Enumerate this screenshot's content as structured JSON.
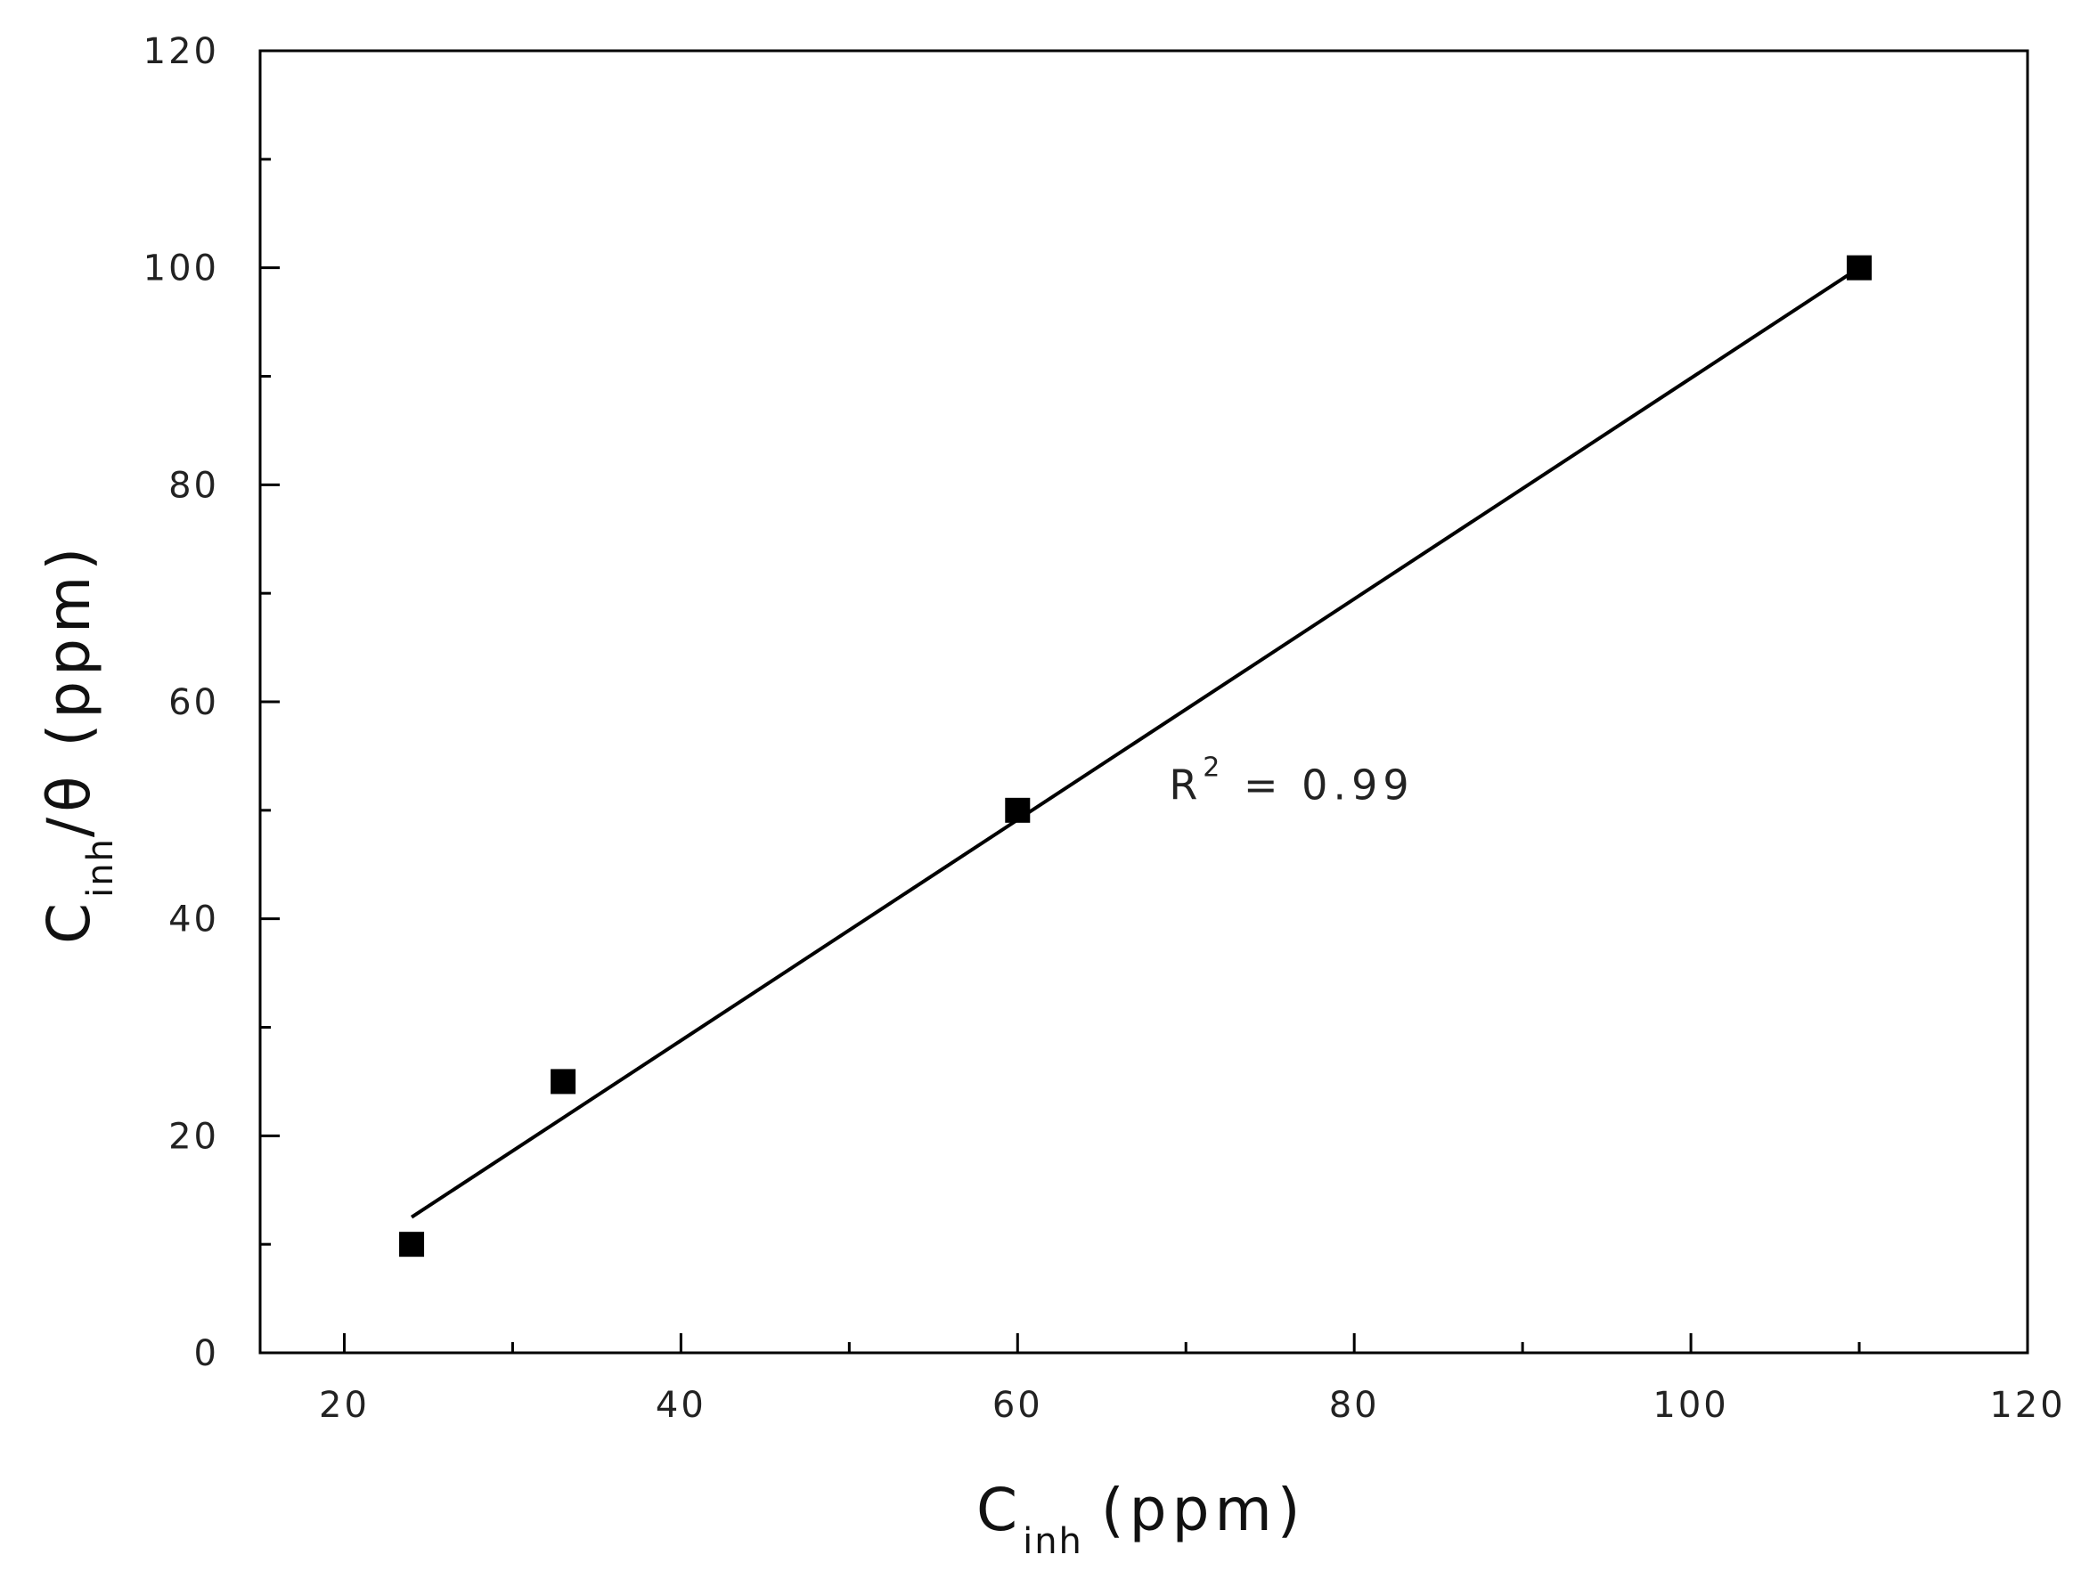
{
  "chart_data": {
    "type": "scatter",
    "title": "",
    "xlabel": {
      "main": "C",
      "sub": "inh",
      "rest": "(ppm)"
    },
    "ylabel": {
      "main": "C",
      "sub": "inh",
      "rest": "/θ (ppm)"
    },
    "xlim": [
      15,
      120
    ],
    "ylim": [
      0,
      120
    ],
    "x_ticks": [
      20,
      40,
      60,
      80,
      100,
      120
    ],
    "y_ticks": [
      0,
      20,
      40,
      60,
      80,
      100,
      120
    ],
    "x_tick_labels": [
      "20",
      "40",
      "60",
      "80",
      "100",
      "120"
    ],
    "y_tick_labels": [
      "0",
      "20",
      "40",
      "60",
      "80",
      "100",
      "120"
    ],
    "grid": false,
    "legend": "none",
    "series": [
      {
        "type": "scatter",
        "marker": "square",
        "x": [
          24,
          33,
          60,
          110
        ],
        "y": [
          10,
          25,
          50,
          100
        ]
      },
      {
        "type": "line",
        "x": [
          24,
          110
        ],
        "y": [
          12.5,
          100
        ]
      }
    ],
    "annotation": {
      "text_main": "R",
      "text_sup": "2",
      "text_rest": " = 0.99",
      "x": 69,
      "y": 51
    },
    "colors": {
      "marker": "#000000",
      "line": "#000000",
      "axis": "#000000"
    }
  }
}
